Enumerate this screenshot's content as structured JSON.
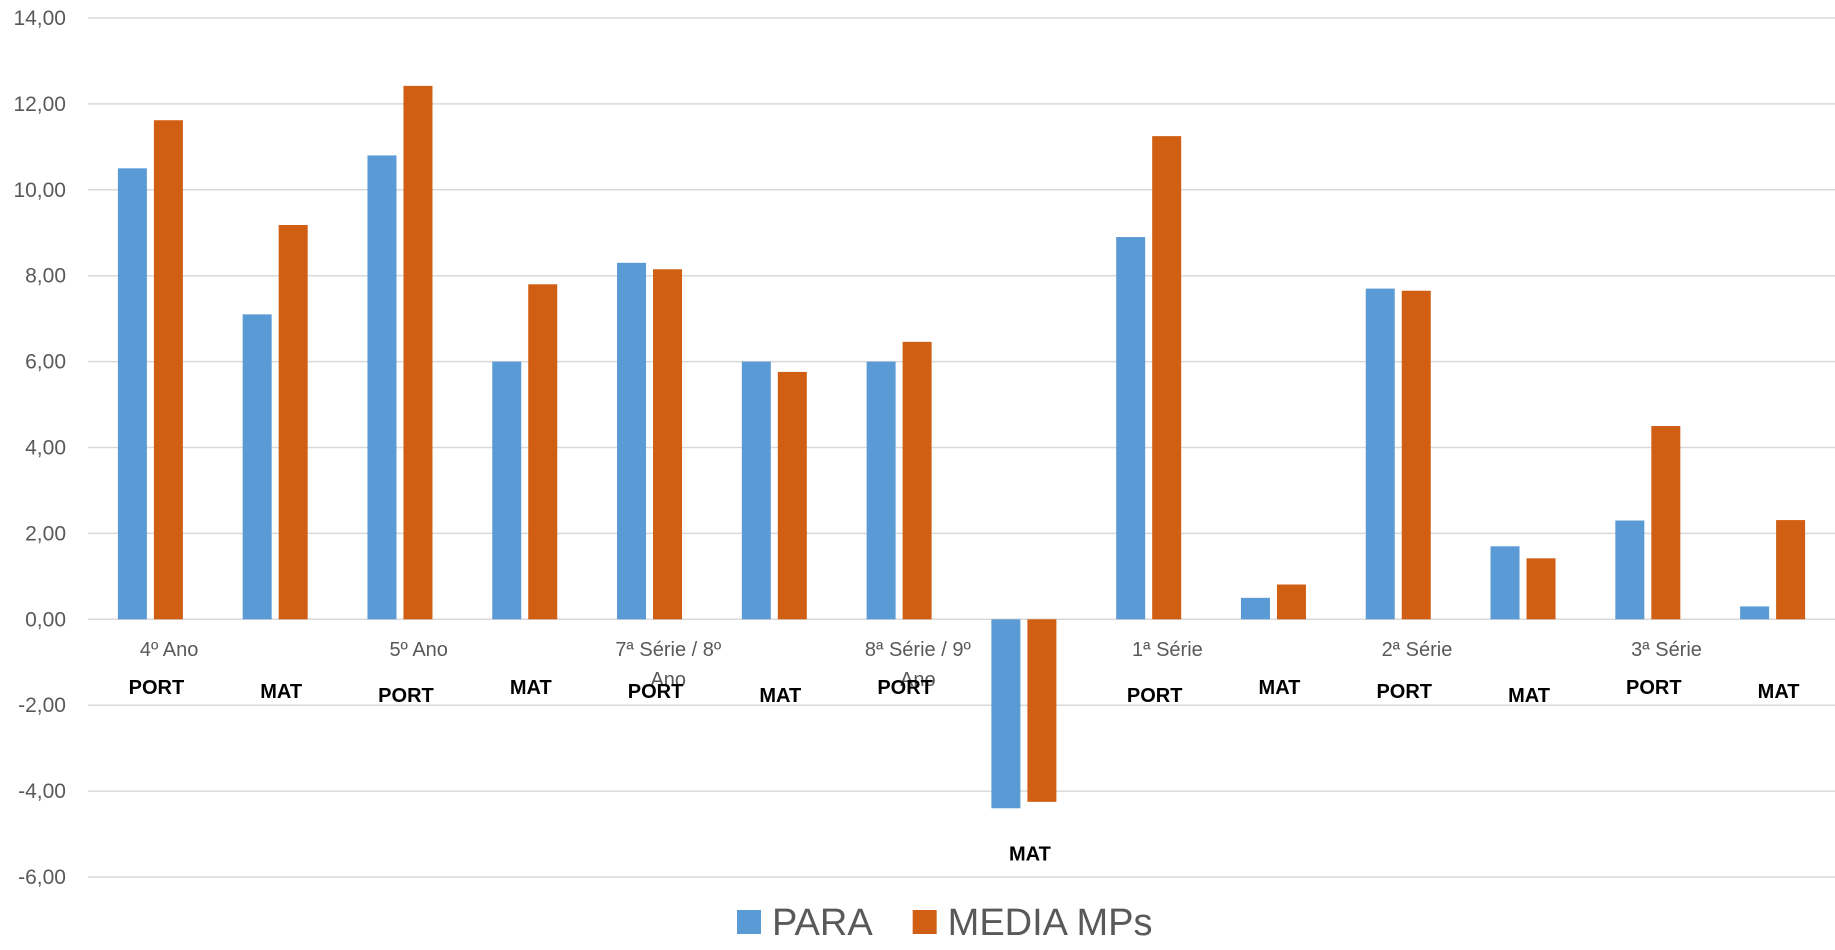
{
  "chart_data": {
    "type": "bar",
    "title": "",
    "xlabel": "",
    "ylabel": "",
    "ylim": [
      -6,
      14
    ],
    "y_ticks": [
      "14,00",
      "12,00",
      "10,00",
      "8,00",
      "6,00",
      "4,00",
      "2,00",
      "0,00",
      "-2,00",
      "-4,00",
      "-6,00"
    ],
    "grid": true,
    "legend_position": "bottom",
    "group_labels": [
      {
        "text": "4º Ano",
        "first": 0,
        "last": 1
      },
      {
        "text": "5º Ano",
        "first": 2,
        "last": 3
      },
      {
        "text": "7ª Série / 8º Ano",
        "first": 4,
        "last": 5
      },
      {
        "text": "8ª Série / 9º Ano",
        "first": 6,
        "last": 7
      },
      {
        "text": "1ª Série",
        "first": 8,
        "last": 9
      },
      {
        "text": "2ª Série",
        "first": 10,
        "last": 11
      },
      {
        "text": "3ª Série",
        "first": 12,
        "last": 13
      }
    ],
    "categories": [
      "PORT",
      "MAT",
      "PORT",
      "MAT",
      "PORT",
      "MAT",
      "PORT",
      "MAT",
      "PORT",
      "MAT",
      "PORT",
      "MAT",
      "PORT",
      "MAT"
    ],
    "series": [
      {
        "name": "PARA",
        "color": "#5b9bd5",
        "values": [
          10.5,
          7.1,
          10.8,
          6.0,
          8.3,
          6.0,
          6.0,
          -4.4,
          8.9,
          0.5,
          7.7,
          1.7,
          2.3,
          0.3
        ]
      },
      {
        "name": "MEDIA MPs",
        "color": "#d05f14",
        "values": [
          11.62,
          9.18,
          12.42,
          7.8,
          8.15,
          5.76,
          6.46,
          -4.25,
          11.25,
          0.81,
          7.65,
          1.42,
          4.5,
          2.31
        ]
      }
    ]
  }
}
